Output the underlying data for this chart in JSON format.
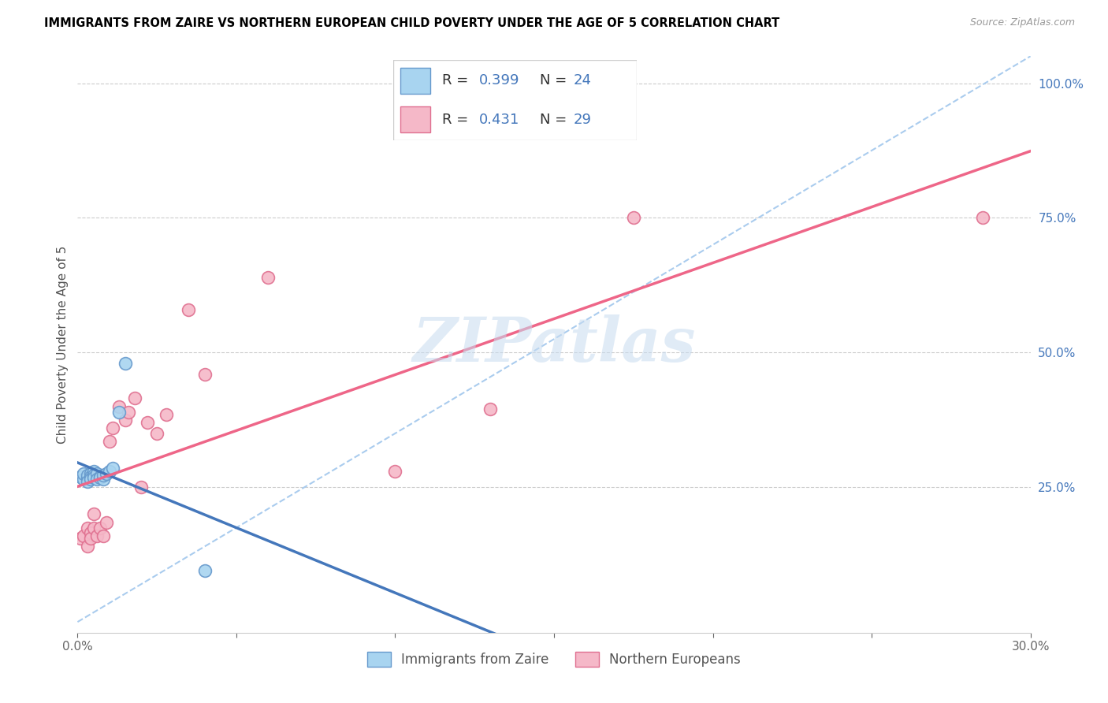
{
  "title": "IMMIGRANTS FROM ZAIRE VS NORTHERN EUROPEAN CHILD POVERTY UNDER THE AGE OF 5 CORRELATION CHART",
  "source": "Source: ZipAtlas.com",
  "ylabel": "Child Poverty Under the Age of 5",
  "x_min": 0.0,
  "x_max": 0.3,
  "y_min": -0.02,
  "y_max": 1.05,
  "x_tick_positions": [
    0.0,
    0.05,
    0.1,
    0.15,
    0.2,
    0.25,
    0.3
  ],
  "x_tick_labels": [
    "0.0%",
    "",
    "",
    "",
    "",
    "",
    "30.0%"
  ],
  "y_ticks_right": [
    0.25,
    0.5,
    0.75,
    1.0
  ],
  "y_tick_labels_right": [
    "25.0%",
    "50.0%",
    "75.0%",
    "100.0%"
  ],
  "legend_bottom1": "Immigrants from Zaire",
  "legend_bottom2": "Northern Europeans",
  "r1_val": "0.399",
  "n1_val": "24",
  "r2_val": "0.431",
  "n2_val": "29",
  "color_blue_fill": "#A8D4F0",
  "color_blue_edge": "#6699CC",
  "color_pink_fill": "#F5B8C8",
  "color_pink_edge": "#E07090",
  "color_line_blue": "#4477BB",
  "color_line_pink": "#EE6688",
  "color_line_dashed": "#AACCEE",
  "color_grid": "#CCCCCC",
  "color_text": "#333333",
  "color_axis_blue": "#4477BB",
  "watermark_text": "ZIPatlas",
  "zaire_x": [
    0.001,
    0.002,
    0.002,
    0.003,
    0.003,
    0.003,
    0.004,
    0.004,
    0.004,
    0.005,
    0.005,
    0.005,
    0.006,
    0.006,
    0.007,
    0.007,
    0.008,
    0.008,
    0.009,
    0.01,
    0.011,
    0.013,
    0.015,
    0.04
  ],
  "zaire_y": [
    0.27,
    0.265,
    0.275,
    0.268,
    0.272,
    0.26,
    0.275,
    0.27,
    0.265,
    0.28,
    0.272,
    0.268,
    0.275,
    0.265,
    0.27,
    0.268,
    0.265,
    0.272,
    0.275,
    0.28,
    0.285,
    0.39,
    0.48,
    0.095
  ],
  "northern_x": [
    0.001,
    0.002,
    0.003,
    0.003,
    0.004,
    0.004,
    0.005,
    0.005,
    0.006,
    0.007,
    0.008,
    0.009,
    0.01,
    0.011,
    0.013,
    0.015,
    0.016,
    0.018,
    0.02,
    0.022,
    0.025,
    0.028,
    0.035,
    0.04,
    0.06,
    0.1,
    0.13,
    0.175,
    0.285
  ],
  "northern_y": [
    0.155,
    0.16,
    0.175,
    0.14,
    0.165,
    0.155,
    0.2,
    0.175,
    0.16,
    0.175,
    0.16,
    0.185,
    0.335,
    0.36,
    0.4,
    0.375,
    0.39,
    0.415,
    0.25,
    0.37,
    0.35,
    0.385,
    0.58,
    0.46,
    0.64,
    0.28,
    0.395,
    0.75,
    0.75
  ]
}
